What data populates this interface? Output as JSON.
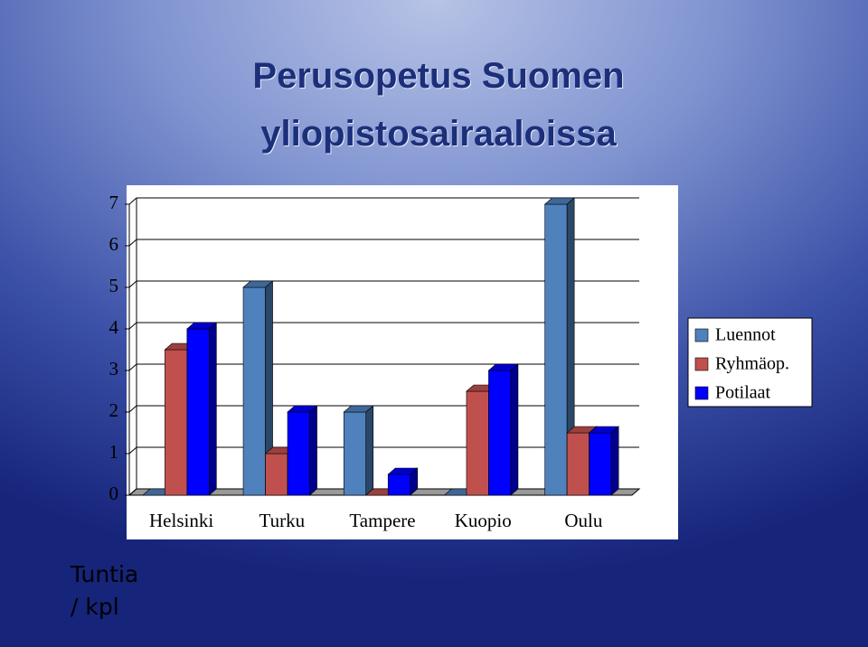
{
  "chart_data": {
    "type": "bar3d",
    "title": "Perusopetus Suomen yliopistosairaaloissa",
    "y_label": "Tuntia / kpl",
    "categories": [
      "Helsinki",
      "Turku",
      "Tampere",
      "Kuopio",
      "Oulu"
    ],
    "series": [
      {
        "name": "Luennot",
        "color": "#4f81bd",
        "values": [
          0,
          5,
          2,
          0,
          7
        ]
      },
      {
        "name": "Ryhmäop.",
        "color": "#c0504d",
        "values": [
          3.5,
          1,
          0,
          2.5,
          1.5
        ]
      },
      {
        "name": "Potilaat",
        "color": "#0000ff",
        "values": [
          4,
          2,
          0.5,
          3,
          1.5
        ]
      }
    ],
    "ylim": [
      0,
      7
    ],
    "yticks": [
      0,
      1,
      2,
      3,
      4,
      5,
      6,
      7
    ],
    "grid": true,
    "legend": "right"
  }
}
